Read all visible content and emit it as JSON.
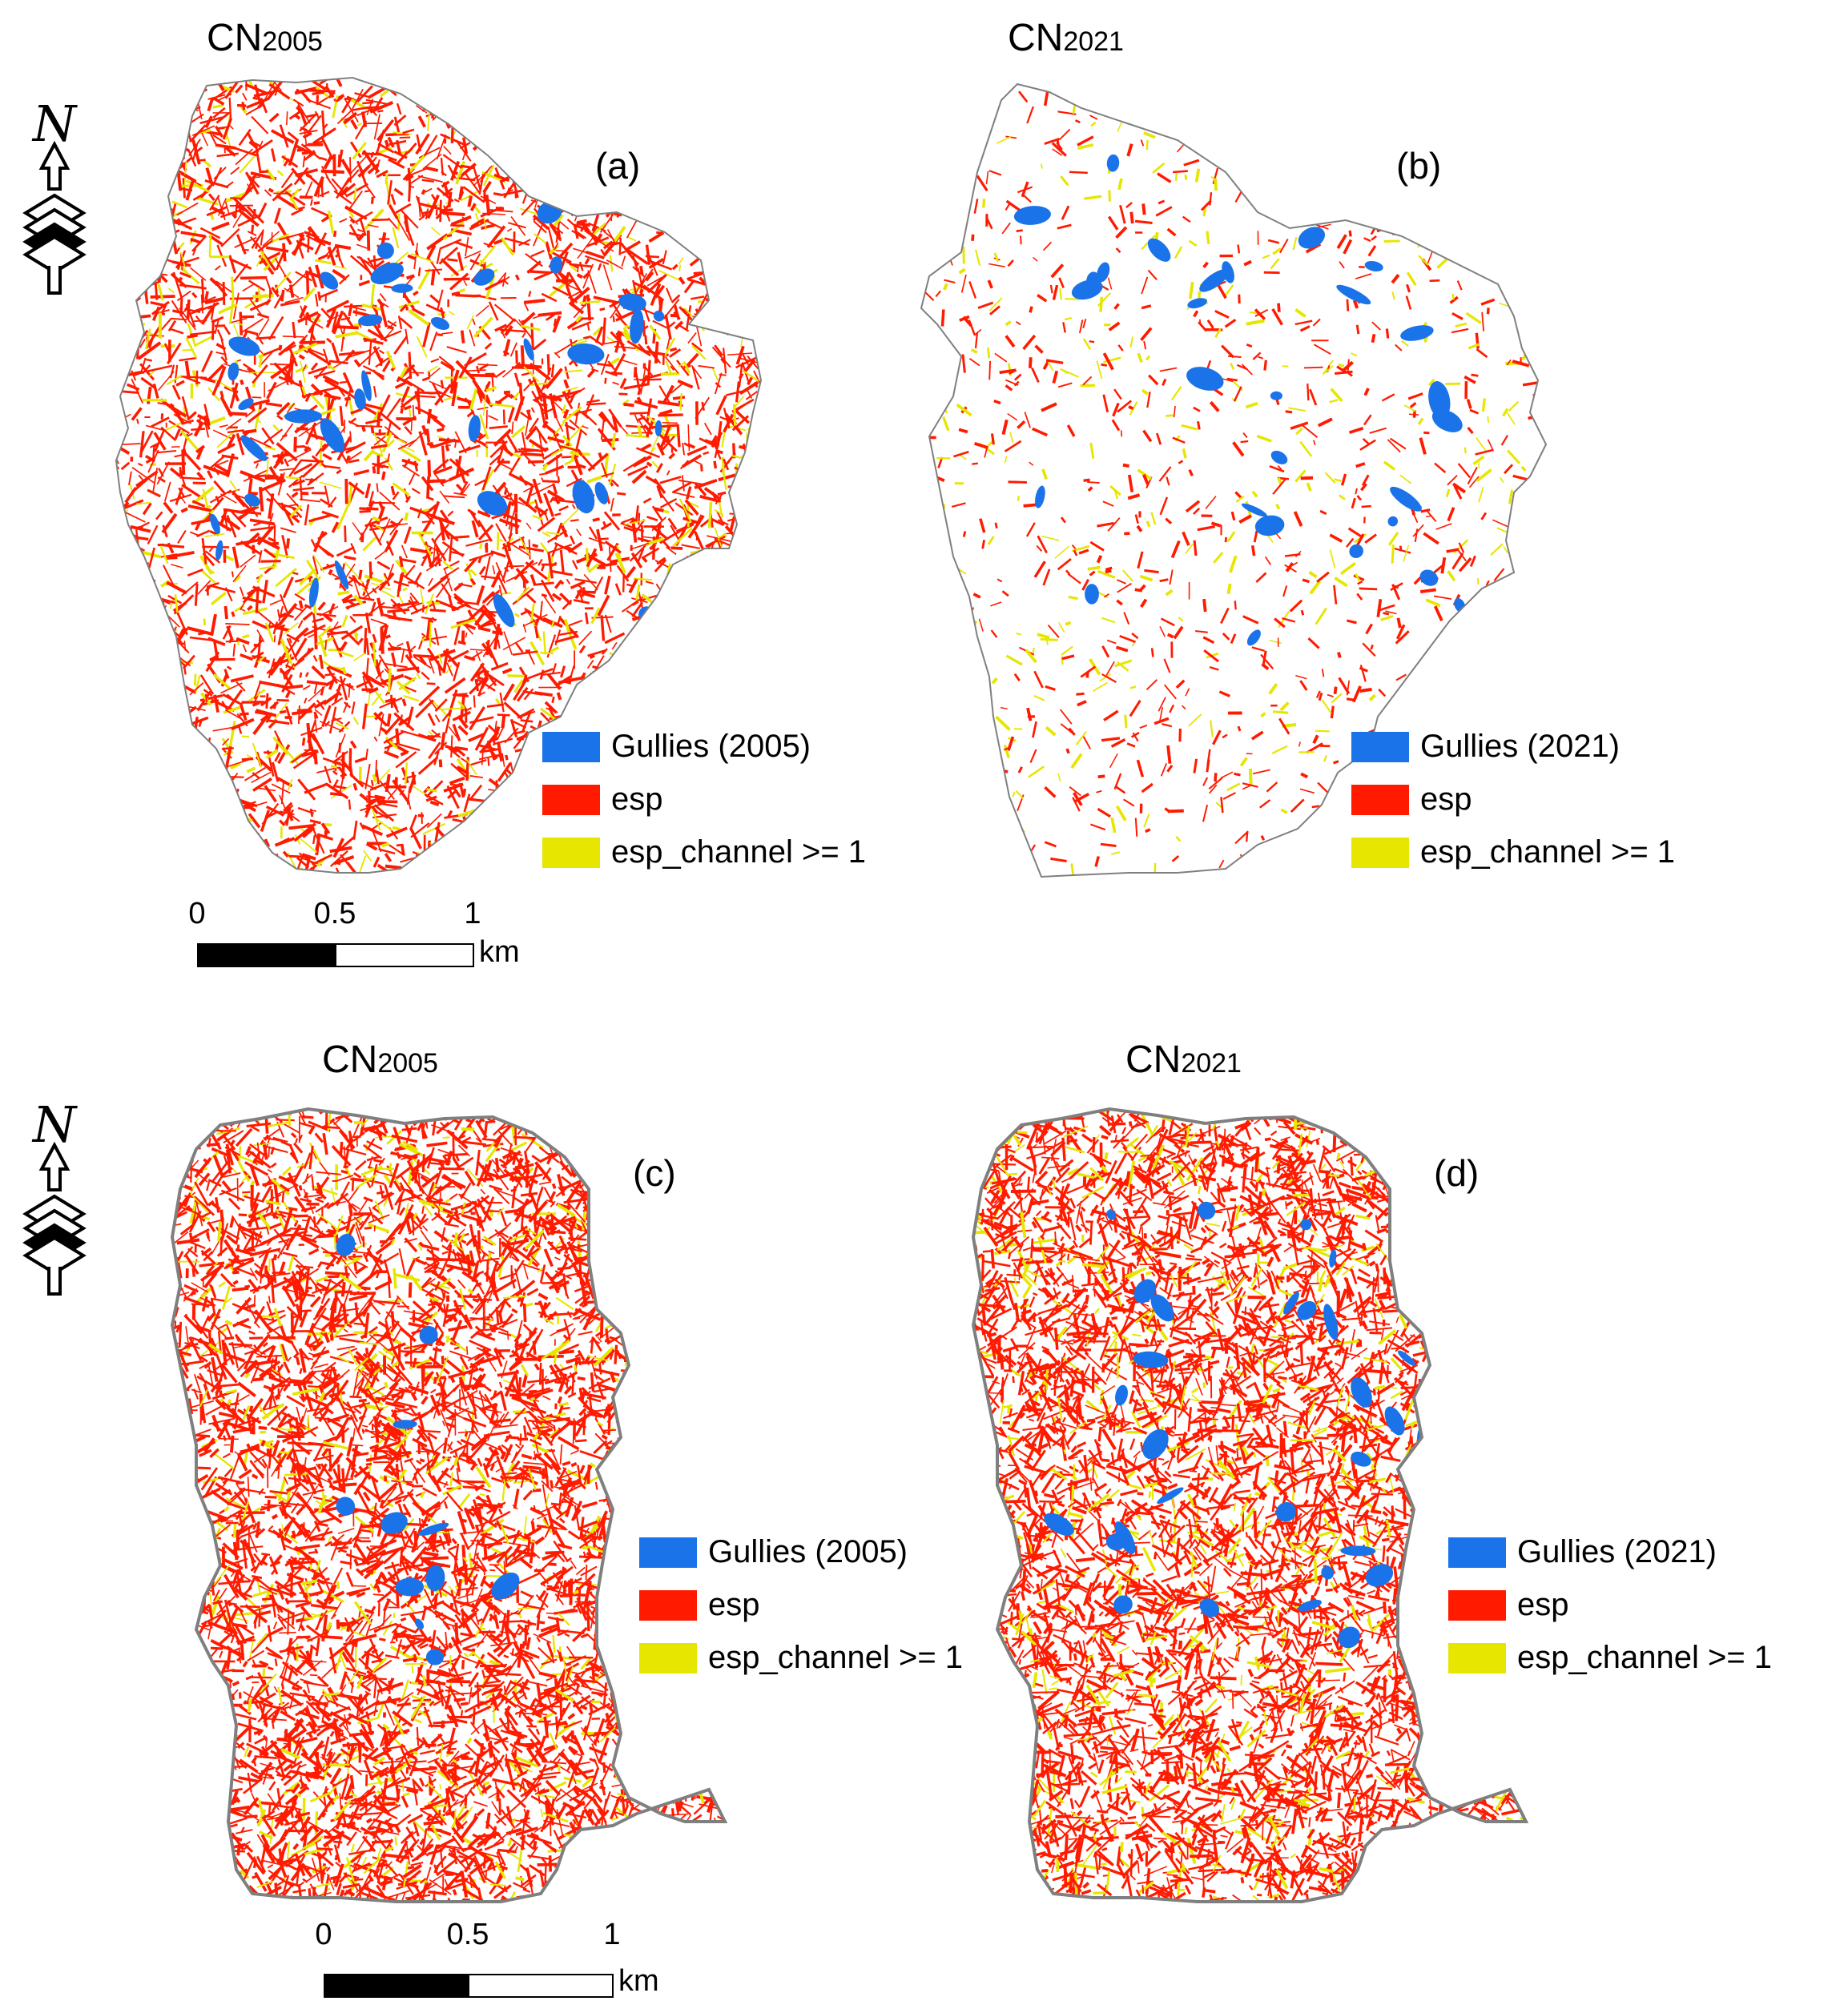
{
  "colors": {
    "gullies": "#1a73e8",
    "esp": "#ff1a00",
    "esp_channel": "#e6e600",
    "boundary": "#7f7f7f",
    "background": "#ffffff"
  },
  "north_arrow": {
    "letter": "N",
    "icon": "north-arrow-icon"
  },
  "panels": [
    {
      "id": "a",
      "title_main": "CN",
      "title_sub": "2005",
      "label": "(a)",
      "legend": {
        "gullies": "Gullies (2005)",
        "esp": "esp",
        "esp_channel": "esp_channel >= 1"
      }
    },
    {
      "id": "b",
      "title_main": "CN",
      "title_sub": "2021",
      "label": "(b)",
      "legend": {
        "gullies": "Gullies (2021)",
        "esp": "esp",
        "esp_channel": "esp_channel >= 1"
      }
    },
    {
      "id": "c",
      "title_main": "CN",
      "title_sub": "2005",
      "label": "(c)",
      "legend": {
        "gullies": "Gullies (2005)",
        "esp": "esp",
        "esp_channel": "esp_channel >= 1"
      }
    },
    {
      "id": "d",
      "title_main": "CN",
      "title_sub": "2021",
      "label": "(d)",
      "legend": {
        "gullies": "Gullies (2021)",
        "esp": "esp",
        "esp_channel": "esp_channel >= 1"
      }
    }
  ],
  "scalebars": [
    {
      "ticks": [
        "0",
        "0.5",
        "1"
      ],
      "unit": "km"
    },
    {
      "ticks": [
        "0",
        "0.5",
        "1"
      ],
      "unit": "km"
    }
  ]
}
